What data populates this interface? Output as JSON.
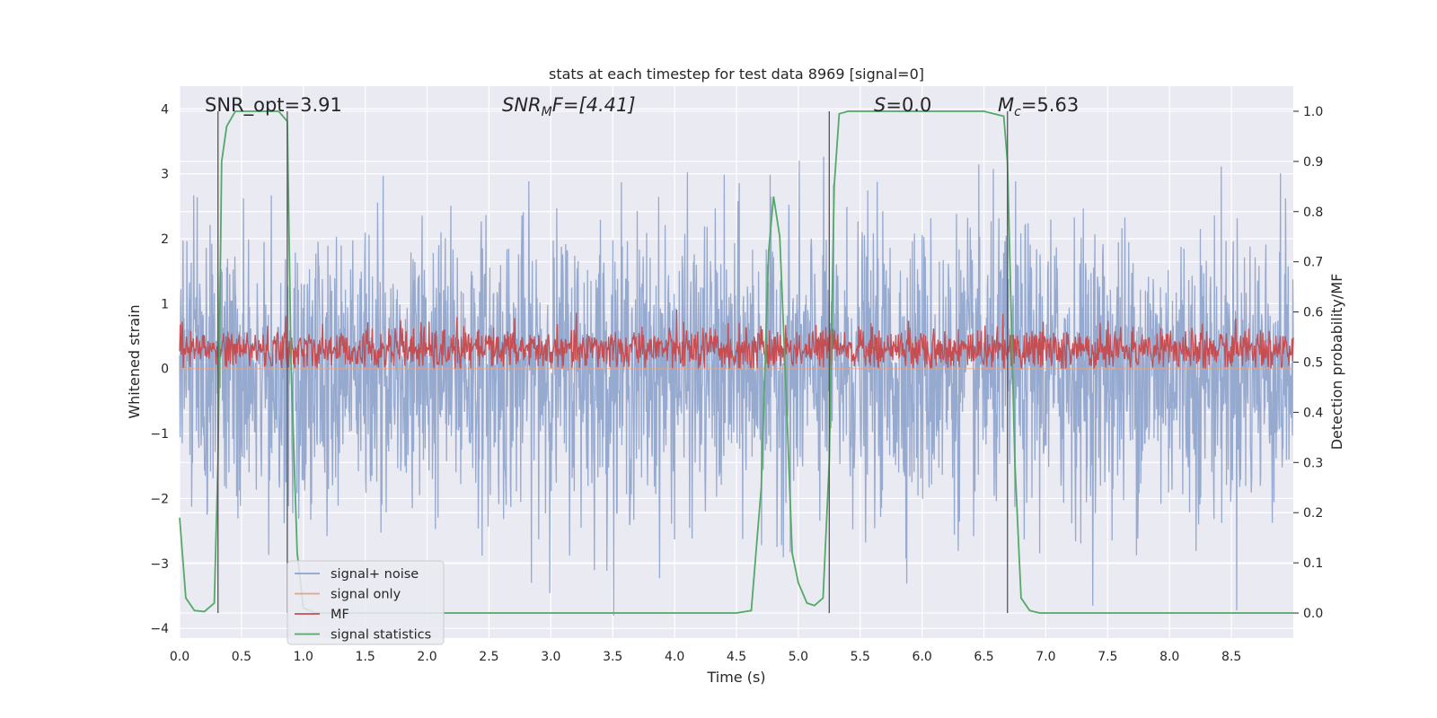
{
  "chart_data": {
    "type": "line",
    "title": "stats at each timestep for test data 8969 [signal=0]",
    "xlabel": "Time (s)",
    "ylabel": "Whitened strain",
    "y2label": "Detection probability/MF",
    "xlim": [
      0,
      9
    ],
    "ylim": [
      -4.15,
      4.35
    ],
    "y2lim": [
      -0.05,
      1.05
    ],
    "x_ticks": [
      "0.0",
      "0.5",
      "1.0",
      "1.5",
      "2.0",
      "2.5",
      "3.0",
      "3.5",
      "4.0",
      "4.5",
      "5.0",
      "5.5",
      "6.0",
      "6.5",
      "7.0",
      "7.5",
      "8.0",
      "8.5"
    ],
    "y_ticks": [
      "4",
      "3",
      "2",
      "1",
      "0",
      "−1",
      "−2",
      "−3",
      "−4"
    ],
    "y2_ticks": [
      "1.0",
      "0.9",
      "0.8",
      "0.7",
      "0.6",
      "0.5",
      "0.4",
      "0.3",
      "0.2",
      "0.1",
      "0.0"
    ],
    "grid": true,
    "legend_position": "lower-left",
    "annotations": {
      "snr_opt": "SNR_opt=3.91",
      "snr_mf_main": "SNR",
      "snr_mf_sub": "M",
      "snr_mf_rest": "F=[4.41]",
      "s_main": "S",
      "s_rest": "=0.0",
      "mc_main": "M",
      "mc_sub": "c",
      "mc_rest": "=5.63"
    },
    "vertical_markers_s": [
      0.31,
      0.87,
      5.25,
      6.69
    ],
    "series": [
      {
        "name": "signal+ noise",
        "color": "#8da2cb",
        "axis": "left",
        "description_stats": {
          "spike_range": [
            -3.8,
            3.95
          ],
          "band": [
            -1.5,
            1.5
          ]
        }
      },
      {
        "name": "signal only",
        "color": "#e8a082",
        "axis": "left"
      },
      {
        "name": "MF",
        "color": "#c44e52",
        "axis": "left",
        "description_stats": {
          "range": [
            0.0,
            0.95
          ],
          "center": 0.3
        }
      },
      {
        "name": "signal statistics",
        "color": "#55a868",
        "axis": "right",
        "x": [
          0.0,
          0.05,
          0.12,
          0.2,
          0.28,
          0.31,
          0.34,
          0.38,
          0.45,
          0.6,
          0.8,
          0.87,
          0.9,
          0.95,
          1.0,
          1.1,
          1.2,
          4.5,
          4.62,
          4.7,
          4.76,
          4.8,
          4.85,
          4.9,
          4.95,
          5.0,
          5.07,
          5.13,
          5.2,
          5.25,
          5.29,
          5.33,
          5.4,
          5.6,
          6.5,
          6.66,
          6.69,
          6.75,
          6.8,
          6.87,
          6.95,
          7.2,
          9.0
        ],
        "values": [
          0.19,
          0.03,
          0.005,
          0.003,
          0.02,
          0.3,
          0.9,
          0.97,
          1.0,
          1.0,
          1.0,
          0.98,
          0.5,
          0.12,
          0.01,
          0.0,
          0.0,
          0.0,
          0.005,
          0.25,
          0.72,
          0.83,
          0.75,
          0.45,
          0.12,
          0.06,
          0.02,
          0.015,
          0.03,
          0.3,
          0.85,
          0.995,
          1.0,
          1.0,
          1.0,
          0.99,
          0.9,
          0.3,
          0.03,
          0.005,
          0.0,
          0.0,
          0.0
        ]
      }
    ]
  }
}
